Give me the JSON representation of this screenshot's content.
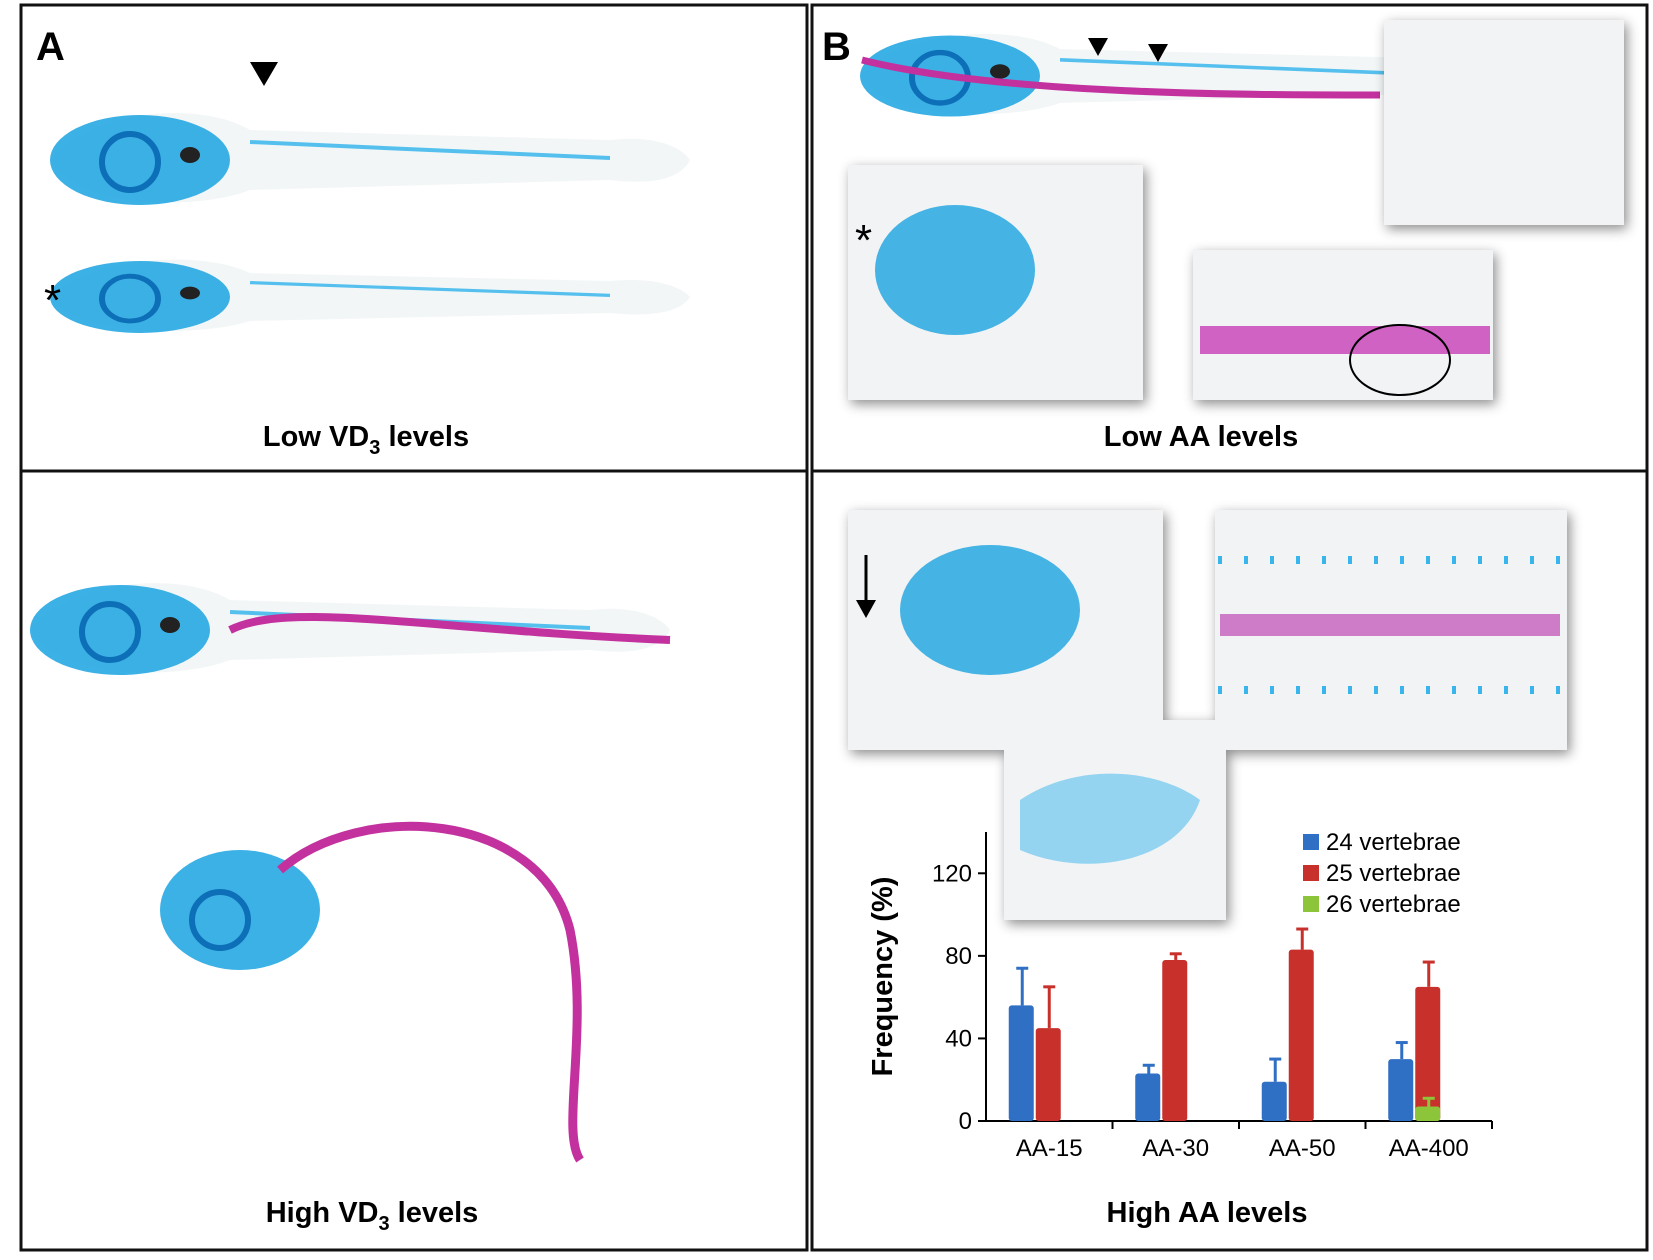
{
  "panels": {
    "a": "A",
    "b": "B"
  },
  "captions": {
    "low_vd3": {
      "text": "Low VD",
      "sub": "3",
      "after": " levels"
    },
    "low_aa": "Low AA levels",
    "high_vd3": {
      "text": "High  VD",
      "sub": "3",
      "after": " levels"
    },
    "high_aa": "High AA levels"
  },
  "markers": {
    "asterisks": [
      "*",
      "*"
    ]
  },
  "chart_data": {
    "type": "bar",
    "ylabel": "Frequency (%)",
    "categories": [
      "AA-15",
      "AA-30",
      "AA-50",
      "AA-400"
    ],
    "series": [
      {
        "name": "24 vertebrae",
        "color": "#2f6fc4",
        "values": [
          56,
          23,
          19,
          30
        ],
        "errors": [
          18,
          4,
          11,
          8
        ]
      },
      {
        "name": "25 vertebrae",
        "color": "#c8312b",
        "values": [
          45,
          78,
          83,
          65
        ],
        "errors": [
          20,
          3,
          10,
          12
        ]
      },
      {
        "name": "26 vertebrae",
        "color": "#8cc43a",
        "values": [
          null,
          null,
          null,
          7
        ],
        "errors": [
          null,
          null,
          null,
          4
        ]
      }
    ],
    "ylim": [
      0,
      140
    ],
    "yticks": [
      0,
      40,
      80,
      120
    ],
    "grid": false
  }
}
